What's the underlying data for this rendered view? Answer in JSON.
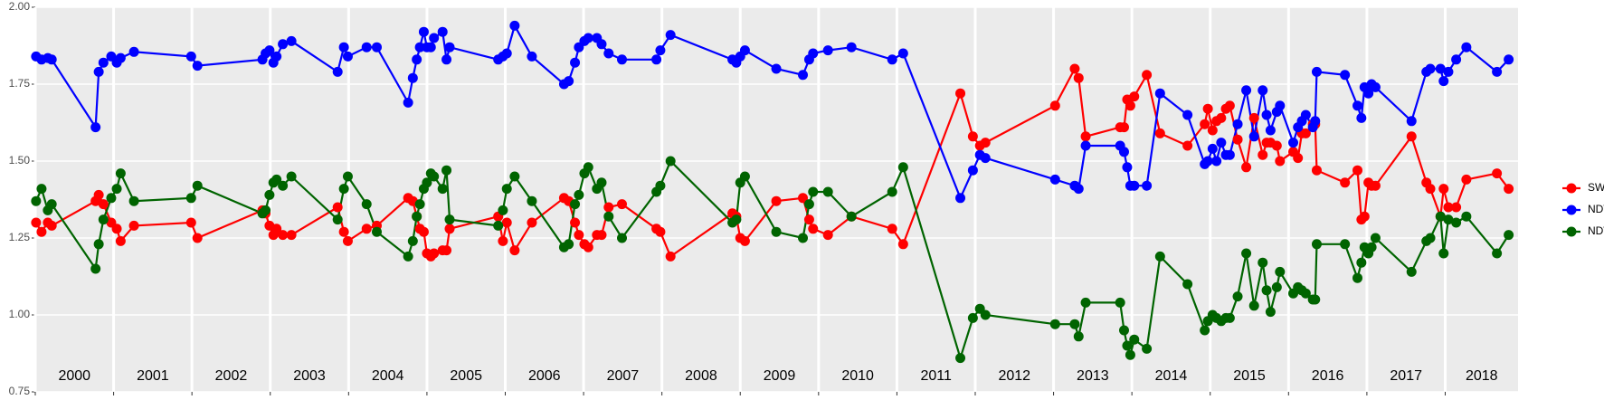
{
  "chart_data": {
    "type": "line",
    "x": [
      2000.01,
      2000.08,
      2000.16,
      2000.21,
      2000.77,
      2000.81,
      2000.87,
      2000.97,
      2001.04,
      2001.09,
      2001.26,
      2001.99,
      2002.07,
      2002.9,
      2002.94,
      2002.99,
      2003.04,
      2003.08,
      2003.16,
      2003.27,
      2003.86,
      2003.94,
      2003.99,
      2004.23,
      2004.36,
      2004.76,
      2004.82,
      2004.87,
      2004.91,
      2004.96,
      2005.0,
      2005.05,
      2005.09,
      2005.2,
      2005.25,
      2005.29,
      2005.91,
      2005.97,
      2006.02,
      2006.12,
      2006.34,
      2006.75,
      2006.81,
      2006.89,
      2006.94,
      2007.01,
      2007.06,
      2007.17,
      2007.23,
      2007.32,
      2007.49,
      2007.93,
      2007.98,
      2008.11,
      2008.9,
      2008.95,
      2009.0,
      2009.06,
      2009.46,
      2009.8,
      2009.88,
      2009.93,
      2010.12,
      2010.42,
      2010.94,
      2011.08,
      2011.81,
      2011.97,
      2012.06,
      2012.13,
      2013.02,
      2013.27,
      2013.32,
      2013.41,
      2013.85,
      2013.9,
      2013.94,
      2013.98,
      2014.03,
      2014.19,
      2014.36,
      2014.71,
      2014.93,
      2014.97,
      2015.03,
      2015.08,
      2015.14,
      2015.2,
      2015.25,
      2015.35,
      2015.46,
      2015.56,
      2015.67,
      2015.72,
      2015.77,
      2015.85,
      2015.89,
      2016.06,
      2016.12,
      2016.17,
      2016.22,
      2016.31,
      2016.34,
      2016.36,
      2016.72,
      2016.88,
      2016.93,
      2016.97,
      2017.02,
      2017.06,
      2017.11,
      2017.57,
      2017.76,
      2017.81,
      2017.94,
      2017.98,
      2018.04,
      2018.14,
      2018.27,
      2018.66,
      2018.81
    ],
    "series": [
      {
        "name": "SWIR",
        "color": "#ff0000",
        "values": [
          1.3,
          1.27,
          1.3,
          1.29,
          1.37,
          1.39,
          1.36,
          1.3,
          1.28,
          1.24,
          1.29,
          1.3,
          1.25,
          1.34,
          1.33,
          1.29,
          1.26,
          1.28,
          1.26,
          1.26,
          1.35,
          1.27,
          1.24,
          1.28,
          1.29,
          1.38,
          1.37,
          1.32,
          1.28,
          1.27,
          1.2,
          1.19,
          1.2,
          1.21,
          1.21,
          1.28,
          1.32,
          1.24,
          1.3,
          1.21,
          1.3,
          1.38,
          1.37,
          1.3,
          1.26,
          1.23,
          1.22,
          1.26,
          1.26,
          1.35,
          1.36,
          1.28,
          1.27,
          1.19,
          1.33,
          1.32,
          1.25,
          1.24,
          1.37,
          1.38,
          1.31,
          1.28,
          1.26,
          1.32,
          1.28,
          1.23,
          1.72,
          1.58,
          1.55,
          1.56,
          1.68,
          1.8,
          1.77,
          1.58,
          1.61,
          1.61,
          1.7,
          1.68,
          1.71,
          1.78,
          1.59,
          1.55,
          1.62,
          1.67,
          1.6,
          1.63,
          1.64,
          1.67,
          1.68,
          1.57,
          1.48,
          1.64,
          1.52,
          1.56,
          1.56,
          1.55,
          1.5,
          1.53,
          1.51,
          1.59,
          1.59,
          1.62,
          1.62,
          1.47,
          1.43,
          1.47,
          1.31,
          1.32,
          1.43,
          1.42,
          1.42,
          1.58,
          1.43,
          1.41,
          1.32,
          1.41,
          1.35,
          1.35,
          1.44,
          1.46,
          1.41
        ]
      },
      {
        "name": "NDVI",
        "color": "#0000ff",
        "values": [
          1.84,
          1.83,
          1.835,
          1.83,
          1.61,
          1.79,
          1.82,
          1.84,
          1.82,
          1.835,
          1.855,
          1.84,
          1.81,
          1.83,
          1.85,
          1.86,
          1.82,
          1.84,
          1.88,
          1.89,
          1.79,
          1.87,
          1.84,
          1.87,
          1.87,
          1.69,
          1.77,
          1.83,
          1.87,
          1.92,
          1.87,
          1.87,
          1.9,
          1.92,
          1.83,
          1.87,
          1.83,
          1.84,
          1.85,
          1.94,
          1.84,
          1.75,
          1.76,
          1.82,
          1.87,
          1.89,
          1.9,
          1.9,
          1.88,
          1.85,
          1.83,
          1.83,
          1.86,
          1.91,
          1.83,
          1.82,
          1.84,
          1.86,
          1.8,
          1.78,
          1.83,
          1.85,
          1.86,
          1.87,
          1.83,
          1.85,
          1.38,
          1.47,
          1.52,
          1.51,
          1.44,
          1.42,
          1.41,
          1.55,
          1.55,
          1.53,
          1.48,
          1.42,
          1.42,
          1.42,
          1.72,
          1.65,
          1.49,
          1.5,
          1.54,
          1.5,
          1.56,
          1.52,
          1.52,
          1.62,
          1.73,
          1.58,
          1.73,
          1.65,
          1.6,
          1.66,
          1.68,
          1.56,
          1.61,
          1.63,
          1.65,
          1.61,
          1.63,
          1.79,
          1.78,
          1.68,
          1.64,
          1.74,
          1.72,
          1.75,
          1.74,
          1.63,
          1.79,
          1.8,
          1.8,
          1.76,
          1.79,
          1.83,
          1.87,
          1.79,
          1.83
        ]
      },
      {
        "name": "NDWI",
        "color": "#006400",
        "values": [
          1.37,
          1.41,
          1.34,
          1.36,
          1.15,
          1.23,
          1.31,
          1.38,
          1.41,
          1.46,
          1.37,
          1.38,
          1.42,
          1.33,
          1.34,
          1.39,
          1.43,
          1.44,
          1.42,
          1.45,
          1.31,
          1.41,
          1.45,
          1.36,
          1.27,
          1.19,
          1.24,
          1.32,
          1.36,
          1.41,
          1.43,
          1.46,
          1.45,
          1.41,
          1.47,
          1.31,
          1.29,
          1.34,
          1.41,
          1.45,
          1.37,
          1.22,
          1.23,
          1.36,
          1.39,
          1.46,
          1.48,
          1.41,
          1.43,
          1.32,
          1.25,
          1.4,
          1.42,
          1.5,
          1.3,
          1.31,
          1.43,
          1.45,
          1.27,
          1.25,
          1.36,
          1.4,
          1.4,
          1.32,
          1.4,
          1.48,
          0.86,
          0.99,
          1.02,
          1.0,
          0.97,
          0.97,
          0.93,
          1.04,
          1.04,
          0.95,
          0.9,
          0.87,
          0.92,
          0.89,
          1.19,
          1.1,
          0.95,
          0.98,
          1.0,
          0.99,
          0.98,
          0.99,
          0.99,
          1.06,
          1.2,
          1.03,
          1.17,
          1.08,
          1.01,
          1.09,
          1.14,
          1.07,
          1.09,
          1.08,
          1.07,
          1.05,
          1.05,
          1.23,
          1.23,
          1.12,
          1.17,
          1.22,
          1.2,
          1.22,
          1.25,
          1.14,
          1.24,
          1.25,
          1.32,
          1.2,
          1.31,
          1.3,
          1.32,
          1.2,
          1.26
        ]
      }
    ],
    "xlim": [
      2000,
      2018.93
    ],
    "xticks": [
      2000,
      2001,
      2002,
      2003,
      2004,
      2005,
      2006,
      2007,
      2008,
      2009,
      2010,
      2011,
      2012,
      2013,
      2014,
      2015,
      2016,
      2017,
      2018
    ],
    "ylim": [
      0.75,
      2.0
    ],
    "yticks": [
      0.75,
      {
        "value": 1.0,
        "label": "1.00"
      },
      1.25,
      {
        "value": 1.5,
        "label": "1.50"
      },
      1.75,
      {
        "value": 2.0,
        "label": "2.00"
      }
    ],
    "grid": true,
    "legend": "right"
  }
}
